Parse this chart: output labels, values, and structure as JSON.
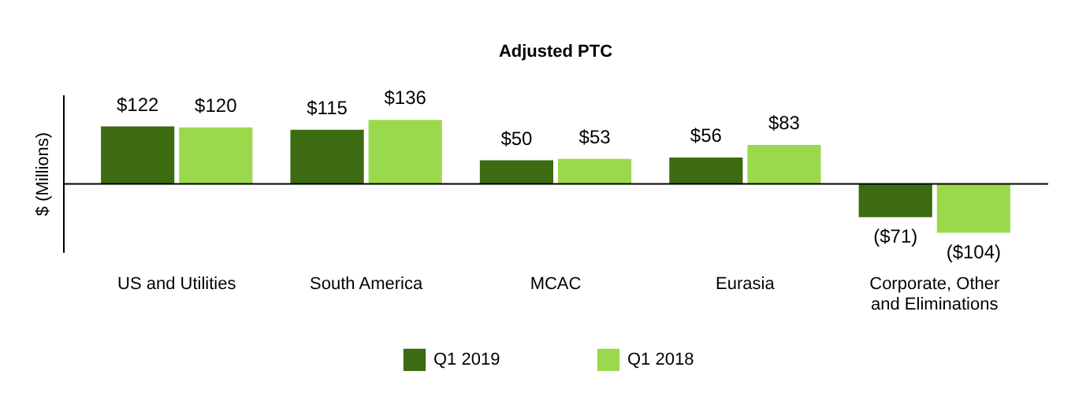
{
  "chart_data": {
    "type": "bar",
    "title": "Adjusted PTC",
    "ylabel": "$ (Millions)",
    "categories": [
      "US and Utilities",
      "South America",
      "MCAC",
      "Eurasia",
      "Corporate, Other and Eliminations"
    ],
    "series": [
      {
        "name": "Q1 2019",
        "color": "#3d6b12",
        "values": [
          122,
          115,
          50,
          56,
          -71
        ],
        "value_labels": [
          "$122",
          "$115",
          "$50",
          "$56",
          "($71)"
        ]
      },
      {
        "name": "Q1 2018",
        "color": "#9bd94c",
        "values": [
          120,
          136,
          53,
          83,
          -104
        ],
        "value_labels": [
          "$120",
          "$136",
          "$53",
          "$83",
          "($104)"
        ]
      }
    ],
    "ylim": [
      -145,
      190
    ],
    "tick_labels": "x",
    "legend": "bottom"
  }
}
